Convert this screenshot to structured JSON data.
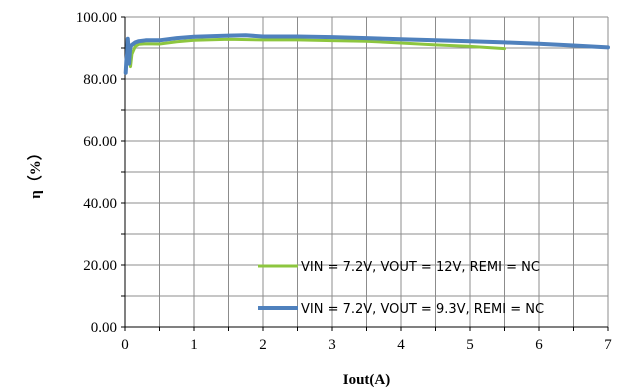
{
  "chart_data": {
    "type": "line",
    "title": "",
    "xlabel": "Iout(A)",
    "ylabel": "η（%）",
    "xlim": [
      0,
      7
    ],
    "ylim": [
      0,
      100
    ],
    "x_ticks": [
      "0",
      "1",
      "2",
      "3",
      "4",
      "5",
      "6",
      "7"
    ],
    "y_ticks": [
      "0.00",
      "20.00",
      "40.00",
      "60.00",
      "80.00",
      "100.00"
    ],
    "grid": true,
    "legend_position": "bottom-right",
    "series": [
      {
        "name": "VIN = 7.2V, VOUT = 12V, REMI = NC",
        "color": "#8dc63f",
        "x": [
          0.02,
          0.04,
          0.06,
          0.08,
          0.1,
          0.15,
          0.2,
          0.3,
          0.5,
          0.75,
          1.0,
          1.5,
          2.0,
          2.5,
          3.0,
          3.5,
          4.0,
          4.5,
          5.0,
          5.5
        ],
        "y": [
          84.0,
          86.0,
          88.0,
          84.0,
          88.0,
          90.5,
          91.2,
          91.4,
          91.3,
          92.0,
          92.5,
          92.8,
          92.6,
          92.6,
          92.4,
          92.2,
          91.6,
          91.0,
          90.5,
          89.8
        ]
      },
      {
        "name": "VIN = 7.2V, VOUT = 9.3V, REMI = NC",
        "color": "#4f81bd",
        "x": [
          0.01,
          0.02,
          0.03,
          0.04,
          0.05,
          0.06,
          0.07,
          0.08,
          0.1,
          0.15,
          0.2,
          0.3,
          0.5,
          0.75,
          1.0,
          1.5,
          1.75,
          2.0,
          2.5,
          3.0,
          3.5,
          4.0,
          4.5,
          5.0,
          5.5,
          6.0,
          6.5,
          7.0
        ],
        "y": [
          82.0,
          86.0,
          88.0,
          93.0,
          90.0,
          85.0,
          88.5,
          90.5,
          91.0,
          91.8,
          92.2,
          92.5,
          92.5,
          93.2,
          93.6,
          94.0,
          94.1,
          93.7,
          93.7,
          93.5,
          93.2,
          92.8,
          92.5,
          92.2,
          91.8,
          91.4,
          90.8,
          90.2
        ]
      }
    ]
  }
}
